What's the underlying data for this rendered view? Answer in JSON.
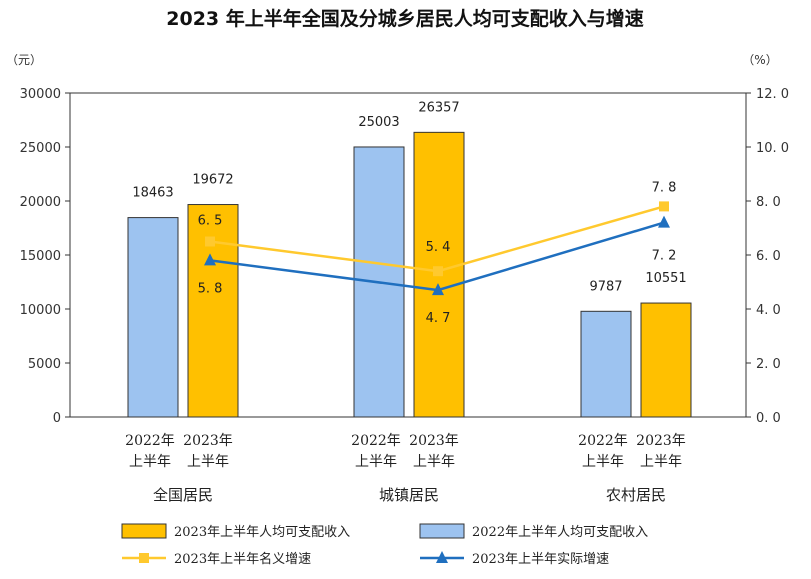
{
  "chart_data": {
    "type": "bar",
    "title": "2023 年上半年全国及分城乡居民人均可支配收入与增速",
    "left_unit": "（元）",
    "right_unit": "（%）",
    "ylim": [
      0,
      30000
    ],
    "ylim_right": [
      0,
      12
    ],
    "yticks": [
      "0",
      "5000",
      "10000",
      "15000",
      "20000",
      "25000",
      "30000"
    ],
    "yticks_right": [
      "0. 0",
      "2. 0",
      "4. 0",
      "6. 0",
      "8. 0",
      "10. 0",
      "12. 0"
    ],
    "categories": [
      "全国居民",
      "城镇居民",
      "农村居民"
    ],
    "bar_labels": [
      [
        "2022年",
        "上半年"
      ],
      [
        "2023年",
        "上半年"
      ]
    ],
    "series": [
      {
        "name": "2022年上半年人均可支配收入",
        "kind": "bar",
        "axis": "left",
        "color": "#9DC3F0",
        "values": [
          18463,
          25003,
          9787
        ],
        "labels": [
          "18463",
          "25003",
          "9787"
        ]
      },
      {
        "name": "2023年上半年人均可支配收入",
        "kind": "bar",
        "axis": "left",
        "color": "#FFC000",
        "values": [
          19672,
          26357,
          10551
        ],
        "labels": [
          "19672",
          "26357",
          "10551"
        ]
      },
      {
        "name": "2023年上半年名义增速",
        "kind": "line",
        "axis": "right",
        "color": "#FFC92E",
        "marker": "square",
        "values": [
          6.5,
          5.4,
          7.8
        ],
        "labels": [
          "6. 5",
          "5. 4",
          "7. 8"
        ]
      },
      {
        "name": "2023年上半年实际增速",
        "kind": "line",
        "axis": "right",
        "color": "#1F6FBF",
        "marker": "triangle",
        "values": [
          5.8,
          4.7,
          7.2
        ],
        "labels": [
          "5. 8",
          "4. 7",
          "7. 2"
        ]
      }
    ],
    "legend": "bottom",
    "legend_order": [
      1,
      0,
      2,
      3
    ],
    "grid": false
  }
}
